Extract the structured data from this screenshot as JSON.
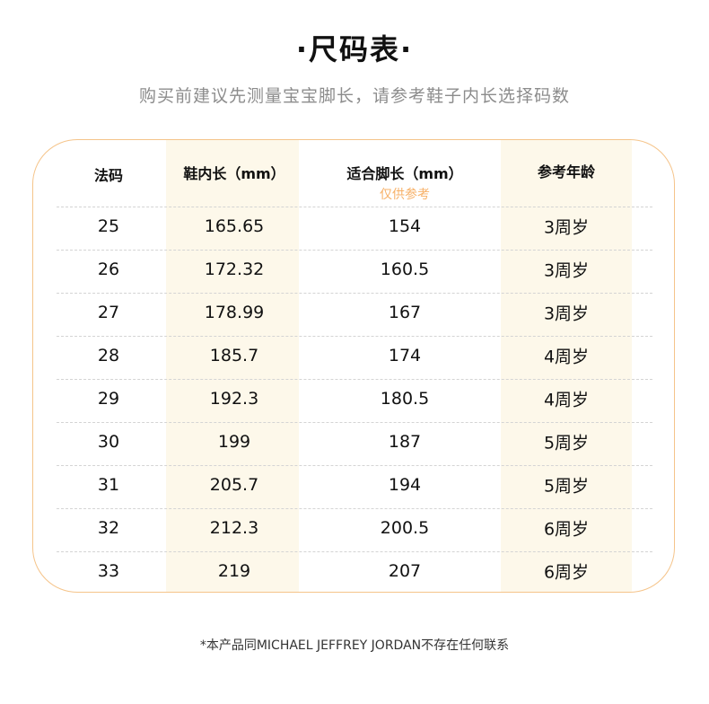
{
  "title": "·尺码表·",
  "subtitle": "购买前建议先测量宝宝脚长，请参考鞋子内长选择码数",
  "table": {
    "headers": [
      "法码",
      "鞋内长（mm）",
      "适合脚长（mm）",
      "参考年龄"
    ],
    "header_note": "仅供参考",
    "rows": [
      [
        "25",
        "165.65",
        "154",
        "3周岁"
      ],
      [
        "26",
        "172.32",
        "160.5",
        "3周岁"
      ],
      [
        "27",
        "178.99",
        "167",
        "3周岁"
      ],
      [
        "28",
        "185.7",
        "174",
        "4周岁"
      ],
      [
        "29",
        "192.3",
        "180.5",
        "4周岁"
      ],
      [
        "30",
        "199",
        "187",
        "5周岁"
      ],
      [
        "31",
        "205.7",
        "194",
        "5周岁"
      ],
      [
        "32",
        "212.3",
        "200.5",
        "6周岁"
      ],
      [
        "33",
        "219",
        "207",
        "6周岁"
      ]
    ]
  },
  "footer": "*本产品同MICHAEL JEFFREY JORDAN不存在任何联系",
  "colors": {
    "border": "#f5c48a",
    "shade": "#fdf8ea",
    "note": "#f7b168"
  }
}
